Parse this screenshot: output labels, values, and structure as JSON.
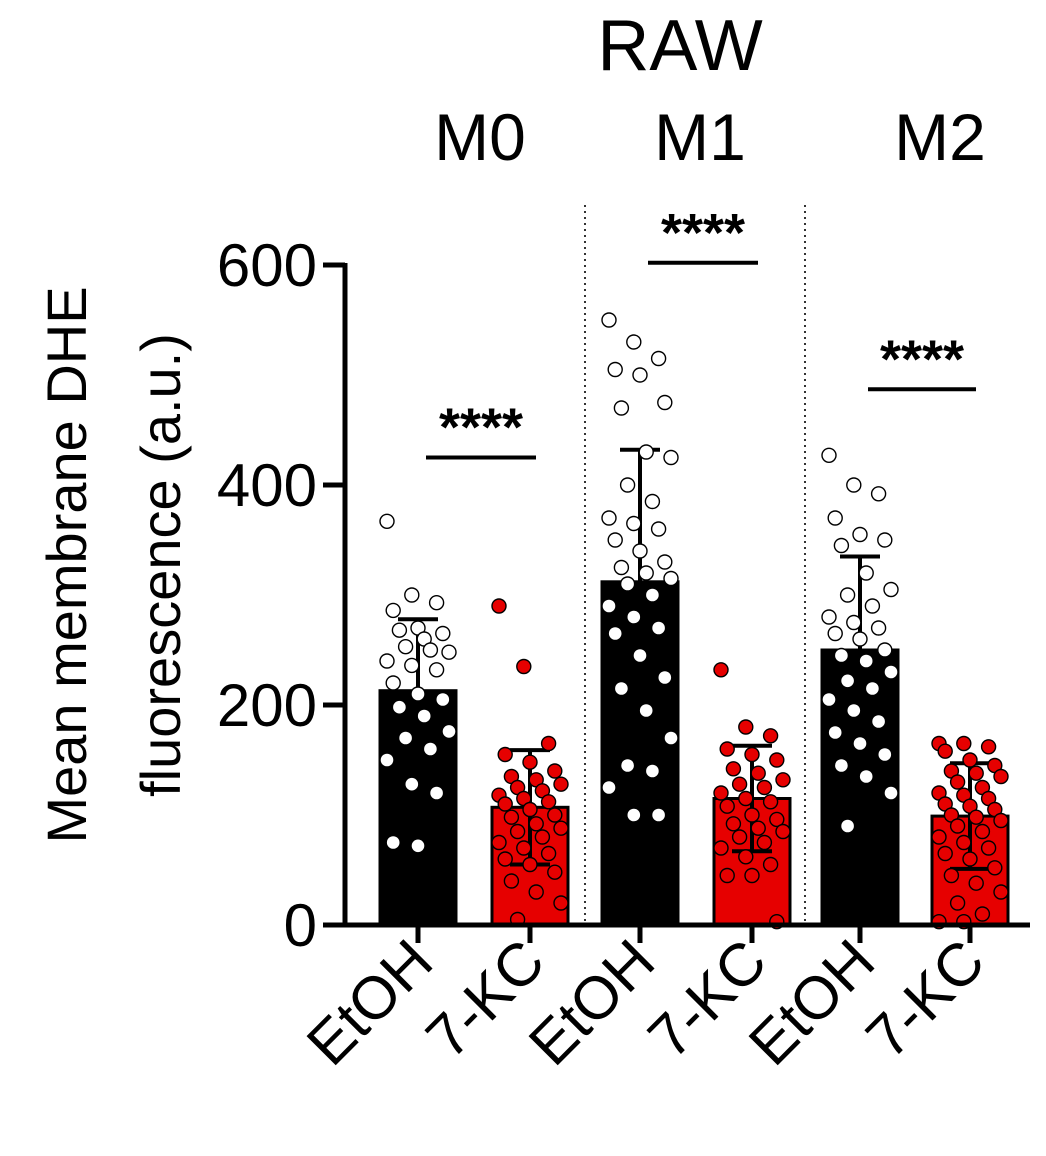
{
  "chart_data": {
    "type": "bar",
    "title": "RAW",
    "ylabel": "Mean membrane DHE fluorescence (a.u.)",
    "ylabel_lines": [
      "Mean membrane DHE",
      "fluorescence (a.u.)"
    ],
    "ylim": [
      0,
      600
    ],
    "yticks": [
      0,
      200,
      400,
      600
    ],
    "categories": [
      "EtOH",
      "7-KC",
      "EtOH",
      "7-KC",
      "EtOH",
      "7-KC"
    ],
    "groups": [
      "M0",
      "M1",
      "M2"
    ],
    "series": [
      {
        "group": "M0",
        "treatment": "EtOH",
        "mean": 213,
        "sd": 65,
        "color": "#000000",
        "points": [
          367,
          300,
          293,
          286,
          270,
          265,
          268,
          260,
          248,
          253,
          250,
          240,
          236,
          232,
          220,
          210,
          205,
          198,
          190,
          176,
          170,
          160,
          150,
          128,
          120,
          75,
          72
        ]
      },
      {
        "group": "7-KC",
        "treatment": "7-KC",
        "mean": 107,
        "sd": 52,
        "color": "#e60000",
        "points": [
          290,
          235,
          165,
          155,
          148,
          140,
          135,
          132,
          128,
          125,
          122,
          118,
          115,
          112,
          110,
          105,
          100,
          98,
          92,
          88,
          85,
          80,
          75,
          70,
          65,
          60,
          55,
          48,
          40,
          30,
          20,
          5
        ]
      },
      {
        "group": "M1",
        "treatment": "EtOH",
        "mean": 312,
        "sd": 120,
        "color": "#000000",
        "points": [
          550,
          530,
          515,
          505,
          500,
          475,
          470,
          430,
          425,
          400,
          385,
          370,
          365,
          360,
          350,
          340,
          330,
          325,
          320,
          315,
          310,
          300,
          290,
          280,
          270,
          265,
          245,
          225,
          215,
          195,
          170,
          145,
          140,
          125,
          100,
          100
        ]
      },
      {
        "group": "M1",
        "treatment": "7-KC",
        "mean": 115,
        "sd": 48,
        "color": "#e60000",
        "points": [
          232,
          180,
          172,
          160,
          155,
          150,
          142,
          138,
          132,
          128,
          125,
          120,
          115,
          112,
          108,
          100,
          96,
          92,
          88,
          85,
          80,
          75,
          70,
          62,
          55,
          45,
          45,
          3
        ]
      },
      {
        "group": "M2",
        "treatment": "EtOH",
        "mean": 250,
        "sd": 85,
        "color": "#000000",
        "points": [
          427,
          400,
          392,
          370,
          355,
          350,
          345,
          320,
          305,
          300,
          290,
          280,
          275,
          270,
          265,
          260,
          250,
          245,
          240,
          230,
          222,
          215,
          205,
          195,
          185,
          175,
          165,
          155,
          145,
          135,
          120,
          90
        ]
      },
      {
        "group": "M2",
        "treatment": "7-KC",
        "mean": 99,
        "sd": 48,
        "color": "#e60000",
        "points": [
          165,
          165,
          162,
          158,
          150,
          145,
          140,
          138,
          135,
          130,
          125,
          120,
          118,
          115,
          110,
          108,
          105,
          100,
          98,
          95,
          90,
          85,
          80,
          75,
          70,
          65,
          60,
          52,
          45,
          38,
          30,
          20,
          10,
          3,
          3
        ]
      }
    ],
    "significance": [
      {
        "group": "M0",
        "label": "****",
        "level": 425
      },
      {
        "group": "M1",
        "label": "****",
        "level": 602
      },
      {
        "group": "M2",
        "label": "****",
        "level": 487
      }
    ],
    "grid": false,
    "legend": "none"
  }
}
